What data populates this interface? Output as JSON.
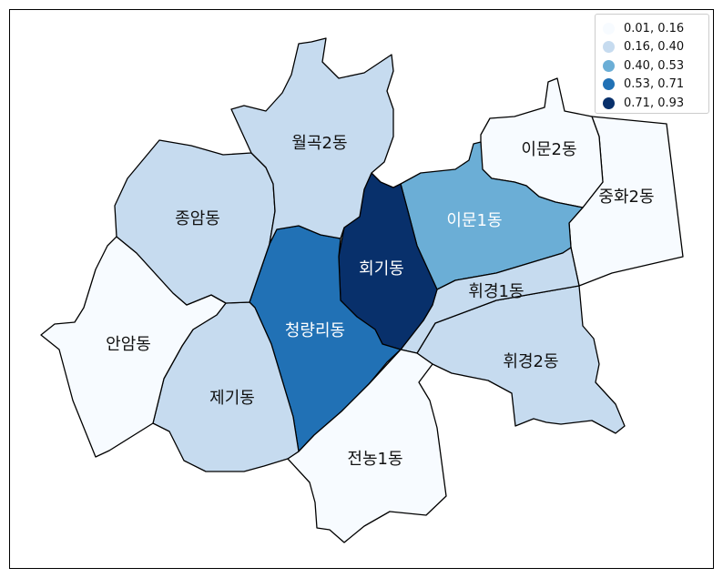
{
  "legend": [
    {
      "label": "0.01, 0.16",
      "color": "#f7fbff"
    },
    {
      "label": "0.16, 0.40",
      "color": "#c6dbef"
    },
    {
      "label": "0.40, 0.53",
      "color": "#6baed6"
    },
    {
      "label": "0.53, 0.71",
      "color": "#2171b5"
    },
    {
      "label": "0.71, 0.93",
      "color": "#08306b"
    }
  ],
  "regions": [
    {
      "key": "jeonnong1",
      "name": "전농1동",
      "color": "#f7fbff"
    },
    {
      "key": "amam",
      "name": "안암동",
      "color": "#f7fbff"
    },
    {
      "key": "jegi",
      "name": "제기동",
      "color": "#c6dbef"
    },
    {
      "key": "jongam",
      "name": "종암동",
      "color": "#c6dbef"
    },
    {
      "key": "wolgok2",
      "name": "월곡2동",
      "color": "#c6dbef"
    },
    {
      "key": "cheongnyangni",
      "name": "청량리동",
      "color": "#2171b5"
    },
    {
      "key": "hoegi",
      "name": "회기동",
      "color": "#08306b"
    },
    {
      "key": "imun1",
      "name": "이문1동",
      "color": "#6baed6"
    },
    {
      "key": "imun2",
      "name": "이문2동",
      "color": "#f7fbff"
    },
    {
      "key": "junghwa2",
      "name": "중화2동",
      "color": "#f7fbff"
    },
    {
      "key": "hwigyeong1",
      "name": "휘경1동",
      "color": "#c6dbef"
    },
    {
      "key": "hwigyeong2",
      "name": "휘경2동",
      "color": "#c6dbef"
    }
  ]
}
